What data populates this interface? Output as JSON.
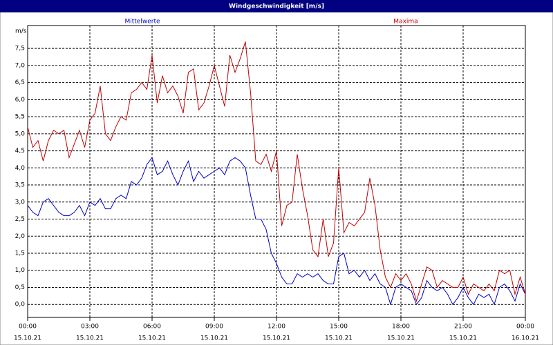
{
  "chart_data": {
    "type": "line",
    "title": "Windgeschwindigkeit [m/s]",
    "y_label": "m/s",
    "x": [
      0,
      0.25,
      0.5,
      0.75,
      1,
      1.25,
      1.5,
      1.75,
      2,
      2.25,
      2.5,
      2.75,
      3,
      3.25,
      3.5,
      3.75,
      4,
      4.25,
      4.5,
      4.75,
      5,
      5.25,
      5.5,
      5.75,
      6,
      6.25,
      6.5,
      6.75,
      7,
      7.25,
      7.5,
      7.75,
      8,
      8.25,
      8.5,
      8.75,
      9,
      9.25,
      9.5,
      9.75,
      10,
      10.25,
      10.5,
      10.75,
      11,
      11.25,
      11.5,
      11.75,
      12,
      12.25,
      12.5,
      12.75,
      13,
      13.25,
      13.5,
      13.75,
      14,
      14.25,
      14.5,
      14.75,
      15,
      15.25,
      15.5,
      15.75,
      16,
      16.25,
      16.5,
      16.75,
      17,
      17.25,
      17.5,
      17.75,
      18,
      18.25,
      18.5,
      18.75,
      19,
      19.25,
      19.5,
      19.75,
      20,
      20.25,
      20.5,
      20.75,
      21,
      21.25,
      21.5,
      21.75,
      22,
      22.25,
      22.5,
      22.75,
      23,
      23.25,
      23.5,
      23.75,
      24
    ],
    "series": [
      {
        "name": "Mittelwerte",
        "color": "#0000c0",
        "values": [
          2.9,
          2.7,
          2.6,
          3.0,
          3.1,
          2.9,
          2.7,
          2.6,
          2.6,
          2.7,
          2.9,
          2.6,
          3.0,
          2.9,
          3.1,
          2.8,
          2.8,
          3.1,
          3.2,
          3.1,
          3.6,
          3.5,
          3.7,
          4.1,
          4.3,
          3.8,
          3.9,
          4.2,
          3.8,
          3.5,
          3.9,
          4.2,
          3.6,
          3.9,
          3.7,
          3.8,
          3.9,
          4.0,
          3.8,
          4.2,
          4.3,
          4.2,
          4.0,
          3.2,
          2.5,
          2.5,
          2.2,
          1.5,
          1.2,
          0.8,
          0.6,
          0.6,
          0.9,
          0.8,
          0.9,
          0.8,
          0.9,
          0.7,
          0.6,
          0.6,
          1.4,
          1.5,
          0.9,
          1.0,
          0.8,
          1.0,
          0.7,
          0.9,
          0.6,
          0.5,
          0.0,
          0.5,
          0.6,
          0.5,
          0.4,
          0.0,
          0.2,
          0.7,
          0.5,
          0.4,
          0.5,
          0.3,
          0.0,
          0.2,
          0.5,
          0.2,
          0.0,
          0.3,
          0.2,
          0.3,
          0.0,
          0.5,
          0.6,
          0.4,
          0.1,
          0.6,
          0.3
        ]
      },
      {
        "name": "Maxima",
        "color": "#c00000",
        "values": [
          5.2,
          4.6,
          4.8,
          4.2,
          4.8,
          5.1,
          5.0,
          5.1,
          4.3,
          4.7,
          5.1,
          4.6,
          5.4,
          5.6,
          6.4,
          5.0,
          4.8,
          5.2,
          5.5,
          5.4,
          6.2,
          6.3,
          6.5,
          6.3,
          7.3,
          5.9,
          6.7,
          6.2,
          6.4,
          6.1,
          5.6,
          6.8,
          6.9,
          5.7,
          5.9,
          6.4,
          7.0,
          6.4,
          5.8,
          7.3,
          6.8,
          7.2,
          7.7,
          6.2,
          4.2,
          4.1,
          4.4,
          3.9,
          4.5,
          2.3,
          2.9,
          3.0,
          4.4,
          3.4,
          2.6,
          1.6,
          1.4,
          2.5,
          1.4,
          1.8,
          4.0,
          2.1,
          2.4,
          2.3,
          2.5,
          2.7,
          3.7,
          2.9,
          1.6,
          0.8,
          0.5,
          0.9,
          0.7,
          0.9,
          0.6,
          0.1,
          0.6,
          1.1,
          1.0,
          0.5,
          0.7,
          0.6,
          0.5,
          0.5,
          0.8,
          0.3,
          0.6,
          0.5,
          0.4,
          0.6,
          0.4,
          1.0,
          0.9,
          1.0,
          0.3,
          0.8,
          0.3
        ]
      }
    ],
    "xlim": [
      0,
      24
    ],
    "xticks": [
      {
        "value": 0,
        "label": "00:00"
      },
      {
        "value": 3,
        "label": "03:00"
      },
      {
        "value": 6,
        "label": "06:00"
      },
      {
        "value": 9,
        "label": "09:00"
      },
      {
        "value": 12,
        "label": "12:00"
      },
      {
        "value": 15,
        "label": "15:00"
      },
      {
        "value": 18,
        "label": "18:00"
      },
      {
        "value": 21,
        "label": "21:00"
      },
      {
        "value": 24,
        "label": "00:00"
      }
    ],
    "xtick_dates": [
      "15.10.21",
      "15.10.21",
      "15.10.21",
      "15.10.21",
      "15.10.21",
      "15.10.21",
      "15.10.21",
      "15.10.21",
      "16.10.21"
    ],
    "ylim": [
      -0.38,
      8.17
    ],
    "yticks": [
      {
        "value": 0,
        "label": "0,0"
      },
      {
        "value": 0.5,
        "label": "0,5"
      },
      {
        "value": 1,
        "label": "1,0"
      },
      {
        "value": 1.5,
        "label": "1,5"
      },
      {
        "value": 2,
        "label": "2,0"
      },
      {
        "value": 2.5,
        "label": "2,5"
      },
      {
        "value": 3,
        "label": "3,0"
      },
      {
        "value": 3.5,
        "label": "3,5"
      },
      {
        "value": 4,
        "label": "4,0"
      },
      {
        "value": 4.5,
        "label": "4,5"
      },
      {
        "value": 5,
        "label": "5,0"
      },
      {
        "value": 5.5,
        "label": "5,5"
      },
      {
        "value": 6,
        "label": "6,0"
      },
      {
        "value": 6.5,
        "label": "6,5"
      },
      {
        "value": 7,
        "label": "7,0"
      },
      {
        "value": 7.5,
        "label": "7,5"
      }
    ],
    "grid": true
  }
}
